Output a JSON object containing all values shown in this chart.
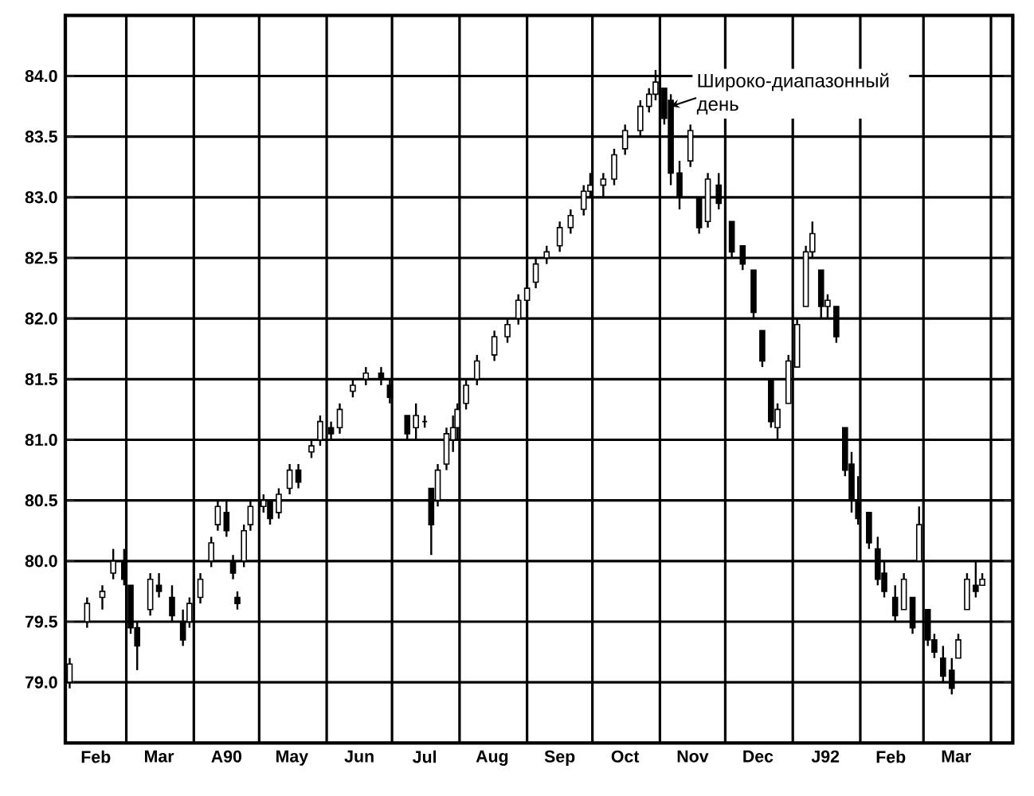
{
  "chart_data": {
    "type": "candlestick",
    "color": "#000000",
    "grid": true,
    "xlim": [
      "1991-02-01",
      "1992-04-11"
    ],
    "ylim": [
      78.5,
      84.5
    ],
    "xticks": [
      {
        "value": "1991-03-01",
        "label": null
      },
      {
        "value": "1991-04-01",
        "label": null
      },
      {
        "value": "1991-05-01",
        "label": null
      },
      {
        "value": "1991-06-01",
        "label": null
      },
      {
        "value": "1991-07-01",
        "label": null
      },
      {
        "value": "1991-08-01",
        "label": null
      },
      {
        "value": "1991-09-01",
        "label": null
      },
      {
        "value": "1991-10-01",
        "label": null
      },
      {
        "value": "1991-11-01",
        "label": null
      },
      {
        "value": "1991-12-01",
        "label": null
      },
      {
        "value": "1992-01-01",
        "label": null
      },
      {
        "value": "1992-02-01",
        "label": null
      },
      {
        "value": "1992-03-01",
        "label": null
      },
      {
        "value": "1992-04-01",
        "label": null
      },
      {
        "value": "1991-02-15",
        "label": "Feb"
      },
      {
        "value": "1991-03-16",
        "label": "Mar"
      },
      {
        "value": "1991-04-16",
        "label": "A90"
      },
      {
        "value": "1991-05-16",
        "label": "May"
      },
      {
        "value": "1991-06-16",
        "label": "Jun"
      },
      {
        "value": "1991-07-16",
        "label": "Jul"
      },
      {
        "value": "1991-08-16",
        "label": "Aug"
      },
      {
        "value": "1991-09-16",
        "label": "Sep"
      },
      {
        "value": "1991-10-16",
        "label": "Oct"
      },
      {
        "value": "1991-11-16",
        "label": "Nov"
      },
      {
        "value": "1991-12-16",
        "label": "Dec"
      },
      {
        "value": "1992-01-16",
        "label": "J92"
      },
      {
        "value": "1992-02-15",
        "label": "Feb"
      },
      {
        "value": "1992-03-16",
        "label": "Mar"
      }
    ],
    "yticks": [
      {
        "value": 79,
        "label": "79.0"
      },
      {
        "value": 79.5,
        "label": "79.5"
      },
      {
        "value": 80,
        "label": "80.0"
      },
      {
        "value": 80.5,
        "label": "80.5"
      },
      {
        "value": 81,
        "label": "81.0"
      },
      {
        "value": 81.5,
        "label": "81.5"
      },
      {
        "value": 82,
        "label": "82.0"
      },
      {
        "value": 82.5,
        "label": "82.5"
      },
      {
        "value": 83,
        "label": "83.0"
      },
      {
        "value": 83.5,
        "label": "83.5"
      },
      {
        "value": 84,
        "label": "84.0"
      }
    ],
    "annotations": [
      {
        "text": "Широко-диапазонный день",
        "x": "1991-11-06",
        "y": 83.75
      }
    ],
    "x": [
      "1991-02-03",
      "1991-02-11",
      "1991-02-18",
      "1991-02-23",
      "1991-02-28",
      "1991-03-03",
      "1991-03-06",
      "1991-03-12",
      "1991-03-16",
      "1991-03-22",
      "1991-03-27",
      "1991-03-30",
      "1991-04-04",
      "1991-04-09",
      "1991-04-12",
      "1991-04-16",
      "1991-04-19",
      "1991-04-21",
      "1991-04-24",
      "1991-04-27",
      "1991-05-03",
      "1991-05-06",
      "1991-05-10",
      "1991-05-15",
      "1991-05-19",
      "1991-05-25",
      "1991-05-29",
      "1991-06-03",
      "1991-06-07",
      "1991-06-13",
      "1991-06-19",
      "1991-06-26",
      "1991-06-30",
      "1991-07-08",
      "1991-07-12",
      "1991-07-16",
      "1991-07-19",
      "1991-07-22",
      "1991-07-26",
      "1991-07-29",
      "1991-07-31",
      "1991-08-04",
      "1991-08-09",
      "1991-08-17",
      "1991-08-23",
      "1991-08-28",
      "1991-09-01",
      "1991-09-05",
      "1991-09-10",
      "1991-09-16",
      "1991-09-21",
      "1991-09-27",
      "1991-09-30",
      "1991-10-06",
      "1991-10-11",
      "1991-10-16",
      "1991-10-23",
      "1991-10-27",
      "1991-10-30",
      "1991-11-03",
      "1991-11-06",
      "1991-11-10",
      "1991-11-15",
      "1991-11-19",
      "1991-11-23",
      "1991-11-28",
      "1991-12-04",
      "1991-12-09",
      "1991-12-14",
      "1991-12-18",
      "1991-12-22",
      "1991-12-25",
      "1991-12-30",
      "1992-01-03",
      "1992-01-07",
      "1992-01-10",
      "1992-01-14",
      "1992-01-17",
      "1992-01-21",
      "1992-01-25",
      "1992-01-28",
      "1992-01-31",
      "1992-02-05",
      "1992-02-09",
      "1992-02-12",
      "1992-02-17",
      "1992-02-21",
      "1992-02-25",
      "1992-02-28",
      "1992-03-03",
      "1992-03-06",
      "1992-03-10",
      "1992-03-14",
      "1992-03-17",
      "1992-03-21",
      "1992-03-25",
      "1992-03-28"
    ],
    "ohlc": [
      [
        79.0,
        79.2,
        78.95,
        79.15
      ],
      [
        79.5,
        79.7,
        79.45,
        79.65
      ],
      [
        79.7,
        79.8,
        79.6,
        79.75
      ],
      [
        79.9,
        80.1,
        79.85,
        80.0
      ],
      [
        80.0,
        80.1,
        79.8,
        79.85
      ],
      [
        79.8,
        79.8,
        79.4,
        79.45
      ],
      [
        79.45,
        79.5,
        79.1,
        79.3
      ],
      [
        79.6,
        79.9,
        79.55,
        79.85
      ],
      [
        79.8,
        79.9,
        79.7,
        79.75
      ],
      [
        79.7,
        79.8,
        79.5,
        79.55
      ],
      [
        79.5,
        79.6,
        79.3,
        79.35
      ],
      [
        79.5,
        79.7,
        79.45,
        79.65
      ],
      [
        79.7,
        79.9,
        79.65,
        79.85
      ],
      [
        80.0,
        80.2,
        79.95,
        80.15
      ],
      [
        80.3,
        80.5,
        80.25,
        80.45
      ],
      [
        80.4,
        80.5,
        80.2,
        80.25
      ],
      [
        80.0,
        80.05,
        79.85,
        79.9
      ],
      [
        79.7,
        79.75,
        79.6,
        79.65
      ],
      [
        80.0,
        80.3,
        79.95,
        80.25
      ],
      [
        80.3,
        80.5,
        80.25,
        80.45
      ],
      [
        80.45,
        80.55,
        80.4,
        80.5
      ],
      [
        80.5,
        80.5,
        80.3,
        80.35
      ],
      [
        80.4,
        80.6,
        80.35,
        80.55
      ],
      [
        80.6,
        80.8,
        80.55,
        80.75
      ],
      [
        80.75,
        80.8,
        80.6,
        80.65
      ],
      [
        80.9,
        81.0,
        80.85,
        80.95
      ],
      [
        81.0,
        81.2,
        80.95,
        81.15
      ],
      [
        81.1,
        81.15,
        81.0,
        81.05
      ],
      [
        81.1,
        81.3,
        81.05,
        81.25
      ],
      [
        81.4,
        81.5,
        81.35,
        81.45
      ],
      [
        81.5,
        81.6,
        81.45,
        81.55
      ],
      [
        81.55,
        81.6,
        81.45,
        81.5
      ],
      [
        81.45,
        81.5,
        81.3,
        81.35
      ],
      [
        81.2,
        81.2,
        81.0,
        81.05
      ],
      [
        81.1,
        81.3,
        81.0,
        81.2
      ],
      [
        81.15,
        81.2,
        81.1,
        81.15
      ],
      [
        80.6,
        80.6,
        80.05,
        80.3
      ],
      [
        80.5,
        80.8,
        80.45,
        80.75
      ],
      [
        80.8,
        81.1,
        80.75,
        81.05
      ],
      [
        81.0,
        81.2,
        80.9,
        81.1
      ],
      [
        81.1,
        81.3,
        81.0,
        81.25
      ],
      [
        81.3,
        81.5,
        81.25,
        81.45
      ],
      [
        81.5,
        81.7,
        81.45,
        81.65
      ],
      [
        81.7,
        81.9,
        81.65,
        81.85
      ],
      [
        81.85,
        82.0,
        81.8,
        81.95
      ],
      [
        82.0,
        82.2,
        81.95,
        82.15
      ],
      [
        82.15,
        82.3,
        82.1,
        82.25
      ],
      [
        82.3,
        82.5,
        82.25,
        82.45
      ],
      [
        82.5,
        82.6,
        82.45,
        82.55
      ],
      [
        82.6,
        82.8,
        82.55,
        82.75
      ],
      [
        82.75,
        82.9,
        82.7,
        82.85
      ],
      [
        82.9,
        83.1,
        82.85,
        83.05
      ],
      [
        83.05,
        83.2,
        83.0,
        83.1
      ],
      [
        83.1,
        83.2,
        83.0,
        83.15
      ],
      [
        83.15,
        83.4,
        83.1,
        83.35
      ],
      [
        83.4,
        83.6,
        83.35,
        83.55
      ],
      [
        83.55,
        83.8,
        83.5,
        83.75
      ],
      [
        83.75,
        83.9,
        83.7,
        83.85
      ],
      [
        83.85,
        84.05,
        83.8,
        83.95
      ],
      [
        83.9,
        83.9,
        83.6,
        83.65
      ],
      [
        83.8,
        83.85,
        83.1,
        83.2
      ],
      [
        83.2,
        83.3,
        82.9,
        83.0
      ],
      [
        83.3,
        83.6,
        83.25,
        83.55
      ],
      [
        83.0,
        83.0,
        82.7,
        82.75
      ],
      [
        82.8,
        83.2,
        82.75,
        83.15
      ],
      [
        83.1,
        83.2,
        82.9,
        82.95
      ],
      [
        82.8,
        82.8,
        82.5,
        82.55
      ],
      [
        82.6,
        82.6,
        82.4,
        82.45
      ],
      [
        82.4,
        82.4,
        82.0,
        82.05
      ],
      [
        81.9,
        81.9,
        81.6,
        81.65
      ],
      [
        81.5,
        81.5,
        81.1,
        81.15
      ],
      [
        81.1,
        81.3,
        81.0,
        81.25
      ],
      [
        81.3,
        81.7,
        81.3,
        81.65
      ],
      [
        81.6,
        82.0,
        81.6,
        81.95
      ],
      [
        82.1,
        82.6,
        82.1,
        82.55
      ],
      [
        82.55,
        82.8,
        82.5,
        82.7
      ],
      [
        82.4,
        82.4,
        82.0,
        82.1
      ],
      [
        82.1,
        82.2,
        82.0,
        82.15
      ],
      [
        82.1,
        82.1,
        81.8,
        81.85
      ],
      [
        81.1,
        81.1,
        80.7,
        80.75
      ],
      [
        80.8,
        80.9,
        80.4,
        80.5
      ],
      [
        80.5,
        80.7,
        80.3,
        80.35
      ],
      [
        80.4,
        80.4,
        80.1,
        80.15
      ],
      [
        80.1,
        80.2,
        79.8,
        79.85
      ],
      [
        79.9,
        80.0,
        79.7,
        79.75
      ],
      [
        79.7,
        79.8,
        79.5,
        79.55
      ],
      [
        79.6,
        79.9,
        79.6,
        79.85
      ],
      [
        79.7,
        79.7,
        79.4,
        79.45
      ],
      [
        80.0,
        80.45,
        80.0,
        80.3
      ],
      [
        79.6,
        79.6,
        79.3,
        79.35
      ],
      [
        79.35,
        79.4,
        79.2,
        79.25
      ],
      [
        79.2,
        79.3,
        79.0,
        79.05
      ],
      [
        79.1,
        79.2,
        78.9,
        78.95
      ],
      [
        79.2,
        79.4,
        79.2,
        79.35
      ],
      [
        79.6,
        79.9,
        79.6,
        79.85
      ],
      [
        79.8,
        80.0,
        79.7,
        79.75
      ],
      [
        79.8,
        79.9,
        79.8,
        79.85
      ]
    ]
  }
}
